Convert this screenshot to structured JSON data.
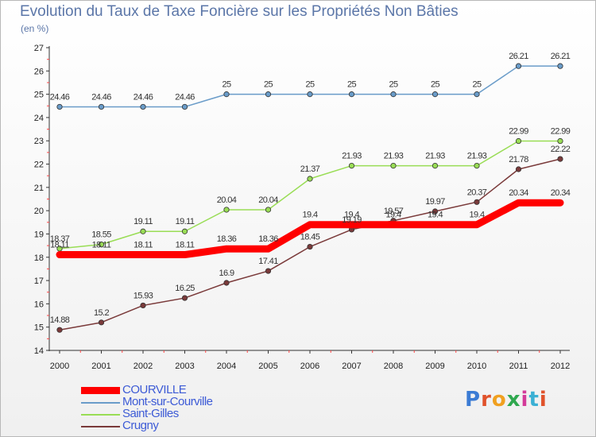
{
  "title": "Evolution du Taux de Taxe Foncière sur les Propriétés Non Bâties",
  "unit": "(en %)",
  "logo": {
    "text": "Proxiti",
    "colors": [
      "#3b7bd4",
      "#e0522b",
      "#f0a020",
      "#2fa84f",
      "#d43b9a",
      "#3bb0d4",
      "#e0522b"
    ]
  },
  "chart_data": {
    "type": "line",
    "title": "Evolution du Taux de Taxe Foncière sur les Propriétés Non Bâties",
    "ylabel": "(en %)",
    "xlabel": "",
    "ylim": [
      14,
      27
    ],
    "yticks": [
      14,
      15,
      16,
      17,
      18,
      19,
      20,
      21,
      22,
      23,
      24,
      25,
      26,
      27
    ],
    "categories": [
      "2000",
      "2001",
      "2002",
      "2003",
      "2004",
      "2005",
      "2006",
      "2007",
      "2008",
      "2009",
      "2010",
      "2011",
      "2012"
    ],
    "series": [
      {
        "name": "COURVILLE",
        "color": "#ff0000",
        "values": [
          18.11,
          18.11,
          18.11,
          18.11,
          18.36,
          18.36,
          19.4,
          19.4,
          19.4,
          19.4,
          19.4,
          20.34,
          20.34
        ],
        "labels": [
          "18.11",
          "18.11",
          "18.11",
          "18.11",
          "18.36",
          "18.36",
          "19.4",
          "19.4",
          "19.4",
          "19.4",
          "19.4",
          "20.34",
          "20.34"
        ]
      },
      {
        "name": "Mont-sur-Courville",
        "color": "#6a9cc9",
        "values": [
          24.46,
          24.46,
          24.46,
          24.46,
          25,
          25,
          25,
          25,
          25,
          25,
          25,
          26.21,
          26.21
        ],
        "labels": [
          "24.46",
          "24.46",
          "24.46",
          "24.46",
          "25",
          "25",
          "25",
          "25",
          "25",
          "25",
          "25",
          "26.21",
          "26.21"
        ]
      },
      {
        "name": "Saint-Gilles",
        "color": "#99dd55",
        "values": [
          18.37,
          18.55,
          19.11,
          19.11,
          20.04,
          20.04,
          21.37,
          21.93,
          21.93,
          21.93,
          21.93,
          22.99,
          22.99
        ],
        "labels": [
          "18.37",
          "18.55",
          "19.11",
          "19.11",
          "20.04",
          "20.04",
          "21.37",
          "21.93",
          "21.93",
          "21.93",
          "21.93",
          "22.99",
          "22.99"
        ]
      },
      {
        "name": "Crugny",
        "color": "#7a3a3a",
        "values": [
          14.88,
          15.2,
          15.93,
          16.25,
          16.9,
          17.41,
          18.45,
          19.19,
          19.57,
          19.97,
          20.37,
          21.78,
          22.22
        ],
        "labels": [
          "14.88",
          "15.2",
          "15.93",
          "16.25",
          "16.9",
          "17.41",
          "18.45",
          "19.19",
          "19.57",
          "19.97",
          "20.37",
          "21.78",
          "22.22"
        ]
      }
    ],
    "legend": [
      "COURVILLE",
      "Mont-sur-Courville",
      "Saint-Gilles",
      "Crugny"
    ],
    "legend_position": "bottom-left"
  }
}
